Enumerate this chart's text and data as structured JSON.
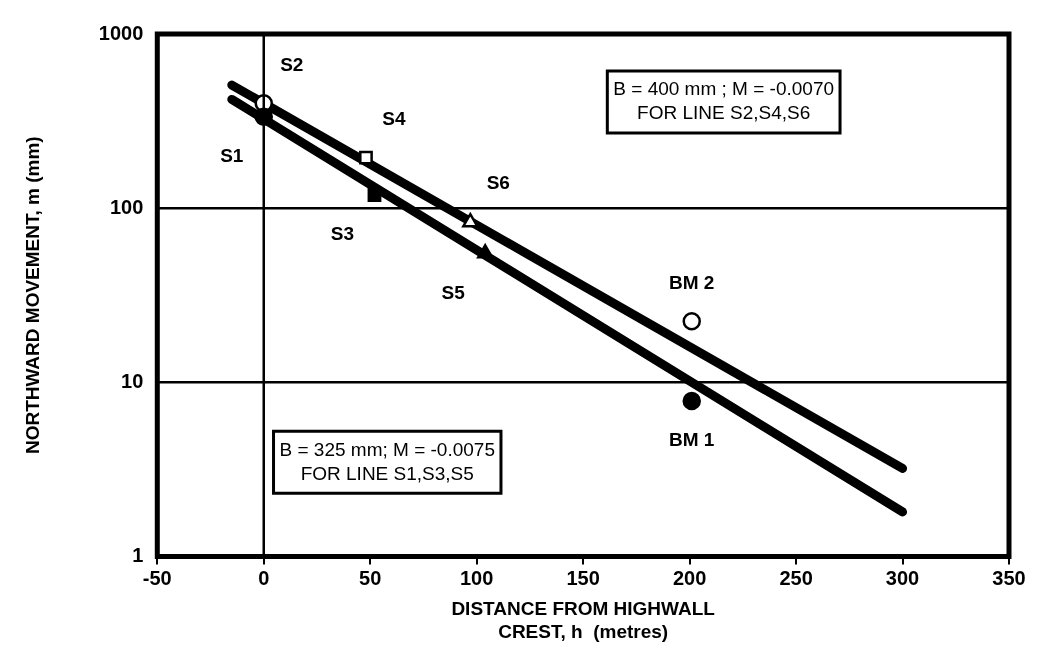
{
  "chart_data": {
    "type": "scatter",
    "xlabel": "DISTANCE FROM HIGHWALL\nCREST, h  (metres)",
    "ylabel": "NORTHWARD MOVEMENT, m (mm)",
    "xlim": [
      -50,
      350
    ],
    "xticks": [
      -50,
      0,
      50,
      100,
      150,
      200,
      250,
      300,
      350
    ],
    "ylim": [
      1,
      1000
    ],
    "yticks": [
      1,
      10,
      100,
      1000
    ],
    "log": "y",
    "grid": "y",
    "legend": false,
    "series": [
      {
        "type": "line",
        "color": "#000000",
        "x": [
          -15,
          300
        ],
        "values": [
          509,
          3.2
        ],
        "marker": "none"
      },
      {
        "type": "line",
        "color": "#000000",
        "x": [
          -15,
          300
        ],
        "values": [
          421,
          1.8
        ],
        "marker": "none"
      },
      {
        "color": "#000000",
        "x": [
          0,
          201
        ],
        "values": [
          335,
          7.8
        ],
        "marker": "circle"
      },
      {
        "color": "#ffffff",
        "x": [
          0,
          201
        ],
        "values": [
          400,
          22.4
        ],
        "marker": "circle"
      },
      {
        "color": "#000000",
        "x": [
          52
        ],
        "values": [
          119
        ],
        "marker": "square"
      },
      {
        "color": "#ffffff",
        "x": [
          48
        ],
        "values": [
          195
        ],
        "marker": "square"
      },
      {
        "color": "#000000",
        "x": [
          104
        ],
        "values": [
          55
        ],
        "marker": "triangle"
      },
      {
        "color": "#ffffff",
        "x": [
          97
        ],
        "values": [
          83
        ],
        "marker": "triangle"
      }
    ],
    "ref_lines": [
      {
        "axis": "x",
        "value": 0
      }
    ],
    "annotations": [
      "B = 400 mm ; M = -0.0070\nFOR LINE S2,S4,S6",
      "B = 325 mm; M = -0.0075\nFOR LINE S1,S3,S5",
      {
        "text": "S1",
        "x": 0,
        "y": 335
      },
      {
        "text": "S2",
        "x": 0,
        "y": 400
      },
      {
        "text": "S3",
        "x": 52,
        "y": 119
      },
      {
        "text": "S4",
        "x": 48,
        "y": 195
      },
      {
        "text": "S5",
        "x": 104,
        "y": 55
      },
      {
        "text": "S6",
        "x": 97,
        "y": 83
      },
      {
        "text": "BM 1",
        "x": 201,
        "y": 7.8
      },
      {
        "text": "BM 2",
        "x": 201,
        "y": 22.4
      }
    ]
  }
}
